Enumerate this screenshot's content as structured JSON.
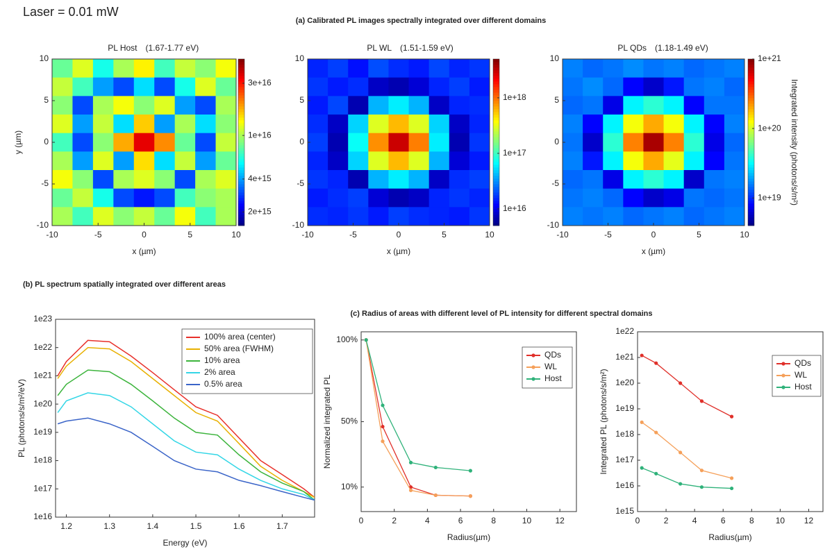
{
  "header": {
    "laser": "Laser = 0.01 mW",
    "panel_a": "(a) Calibrated PL images spectrally integrated over different domains",
    "panel_b": "(b) PL spectrum spatially integrated over different areas",
    "panel_c": "(c) Radius of areas with different level of PL intensity for different spectral domains"
  },
  "chart_data": [
    {
      "type": "heatmap",
      "title": "PL Host",
      "subtitle": "(1.67-1.77 eV)",
      "xlabel": "x (µm)",
      "ylabel": "y (µm)",
      "xlim": [
        -10,
        10
      ],
      "ylim": [
        -10,
        10
      ],
      "xticks": [
        -10,
        -5,
        0,
        5,
        10
      ],
      "yticks": [
        -10,
        -5,
        0,
        5,
        10
      ],
      "colormap": "jet",
      "zscale": "log",
      "zlim": [
        1500000000000000.0,
        5e+16
      ],
      "zticks": [
        {
          "value": 2000000000000000.0,
          "label": "2e+15"
        },
        {
          "value": 4000000000000000.0,
          "label": "4e+15"
        },
        {
          "value": 1e+16,
          "label": "1e+16"
        },
        {
          "value": 3e+16,
          "label": "3e+16"
        }
      ],
      "z": [
        [
          8000000000000000.0,
          1.2e+16,
          6000000000000000.0,
          1e+16,
          1.4e+16,
          7000000000000000.0,
          1.1e+16,
          9000000000000000.0,
          1.3e+16
        ],
        [
          1.1e+16,
          7000000000000000.0,
          4000000000000000.0,
          3000000000000000.0,
          5000000000000000.0,
          3000000000000000.0,
          6000000000000000.0,
          1.2e+16,
          8000000000000000.0
        ],
        [
          9000000000000000.0,
          3000000000000000.0,
          1e+16,
          1.3e+16,
          9000000000000000.0,
          1.2e+16,
          4000000000000000.0,
          3000000000000000.0,
          1e+16
        ],
        [
          1.2e+16,
          4000000000000000.0,
          1.1e+16,
          5000000000000000.0,
          1.6e+16,
          4000000000000000.0,
          1e+16,
          5000000000000000.0,
          9000000000000000.0
        ],
        [
          7000000000000000.0,
          3000000000000000.0,
          9000000000000000.0,
          1.8e+16,
          3.5e+16,
          2e+16,
          8000000000000000.0,
          3000000000000000.0,
          1.1e+16
        ],
        [
          1e+16,
          4000000000000000.0,
          1.2e+16,
          4000000000000000.0,
          1.5e+16,
          5000000000000000.0,
          1.1e+16,
          4000000000000000.0,
          8000000000000000.0
        ],
        [
          1.3e+16,
          9000000000000000.0,
          3000000000000000.0,
          1e+16,
          1.2e+16,
          9000000000000000.0,
          3000000000000000.0,
          1e+16,
          1.2e+16
        ],
        [
          8000000000000000.0,
          1.1e+16,
          6000000000000000.0,
          3000000000000000.0,
          2500000000000000.0,
          3000000000000000.0,
          7000000000000000.0,
          9000000000000000.0,
          1e+16
        ],
        [
          1e+16,
          7000000000000000.0,
          1.2e+16,
          9000000000000000.0,
          1.1e+16,
          8000000000000000.0,
          1.3e+16,
          7000000000000000.0,
          1e+16
        ]
      ]
    },
    {
      "type": "heatmap",
      "title": "PL WL",
      "subtitle": "(1.51-1.59 eV)",
      "xlabel": "x (µm)",
      "xlim": [
        -10,
        10
      ],
      "ylim": [
        -10,
        10
      ],
      "xticks": [
        -10,
        -5,
        0,
        5,
        10
      ],
      "yticks": [
        -10,
        -5,
        0,
        5,
        10
      ],
      "colormap": "jet",
      "zscale": "log",
      "zlim": [
        5000000000000000.0,
        5e+18
      ],
      "zticks": [
        {
          "value": 1e+16,
          "label": "1e+16"
        },
        {
          "value": 1e+17,
          "label": "1e+17"
        },
        {
          "value": 1e+18,
          "label": "1e+18"
        }
      ],
      "z": [
        [
          1.5e+16,
          1.8e+16,
          1.3e+16,
          2e+16,
          1.6e+16,
          1.4e+16,
          1.9e+16,
          1.5e+16,
          1.7e+16
        ],
        [
          1.7e+16,
          1.4e+16,
          1.6e+16,
          8000000000000000.0,
          7000000000000000.0,
          9000000000000000.0,
          1.5e+16,
          1.8e+16,
          1.4e+16
        ],
        [
          1.4e+16,
          1.9e+16,
          7000000000000000.0,
          4e+16,
          6e+16,
          4e+16,
          8000000000000000.0,
          1.5e+16,
          1.6e+16
        ],
        [
          1.6e+16,
          8000000000000000.0,
          5e+16,
          3e+17,
          6e+17,
          3e+17,
          5e+16,
          8000000000000000.0,
          1.5e+16
        ],
        [
          1.8e+16,
          7000000000000000.0,
          7e+16,
          8e+17,
          3e+18,
          9e+17,
          6e+16,
          7000000000000000.0,
          1.7e+16
        ],
        [
          1.5e+16,
          8000000000000000.0,
          5e+16,
          3e+17,
          6e+17,
          3e+17,
          4e+16,
          9000000000000000.0,
          1.4e+16
        ],
        [
          1.7e+16,
          1.5e+16,
          7000000000000000.0,
          4e+16,
          6e+16,
          4e+16,
          8000000000000000.0,
          1.6e+16,
          1.8e+16
        ],
        [
          1.4e+16,
          1.6e+16,
          1.8e+16,
          9000000000000000.0,
          7000000000000000.0,
          8000000000000000.0,
          1.5e+16,
          1.7e+16,
          1.5e+16
        ],
        [
          1.6e+16,
          1.5e+16,
          1.7e+16,
          1.4e+16,
          1.8e+16,
          1.6e+16,
          1.5e+16,
          1.4e+16,
          1.7e+16
        ]
      ]
    },
    {
      "type": "heatmap",
      "title": "PL QDs",
      "subtitle": "(1.18-1.49 eV)",
      "xlabel": "x (µm)",
      "zlabel": "Integrated intensity (photons/s/m²)",
      "xlim": [
        -10,
        10
      ],
      "ylim": [
        -10,
        10
      ],
      "xticks": [
        -10,
        -5,
        0,
        5,
        10
      ],
      "yticks": [
        -10,
        -5,
        0,
        5,
        10
      ],
      "colormap": "jet",
      "zscale": "log",
      "zlim": [
        4e+18,
        1e+21
      ],
      "zticks": [
        {
          "value": 1e+19,
          "label": "1e+19"
        },
        {
          "value": 1e+20,
          "label": "1e+20"
        },
        {
          "value": 1e+21,
          "label": "1e+21"
        }
      ],
      "z": [
        [
          1.6e+19,
          1.4e+19,
          1.5e+19,
          1.7e+19,
          1.5e+19,
          1.6e+19,
          1.4e+19,
          1.5e+19,
          1.6e+19
        ],
        [
          1.5e+19,
          1.7e+19,
          1.4e+19,
          8e+18,
          6e+18,
          9e+18,
          1.5e+19,
          1.6e+19,
          1.4e+19
        ],
        [
          1.4e+19,
          1.5e+19,
          7e+18,
          3e+19,
          4e+19,
          3e+19,
          8e+18,
          1.5e+19,
          1.5e+19
        ],
        [
          1.6e+19,
          8e+18,
          3e+19,
          1.2e+20,
          2e+20,
          1.2e+20,
          3e+19,
          8e+18,
          1.6e+19
        ],
        [
          1.5e+19,
          6e+18,
          4e+19,
          2.5e+20,
          8e+20,
          2.5e+20,
          4e+19,
          7e+18,
          1.4e+19
        ],
        [
          1.6e+19,
          9e+18,
          3e+19,
          1.2e+20,
          2e+20,
          1.1e+20,
          3e+19,
          8e+18,
          1.5e+19
        ],
        [
          1.4e+19,
          1.5e+19,
          7e+18,
          3e+19,
          4e+19,
          3e+19,
          6e+18,
          1.5e+19,
          1.6e+19
        ],
        [
          1.5e+19,
          1.6e+19,
          1.4e+19,
          8e+18,
          6e+18,
          7e+18,
          1.5e+19,
          1.4e+19,
          1.5e+19
        ],
        [
          1.6e+19,
          1.5e+19,
          1.6e+19,
          1.4e+19,
          1.5e+19,
          1.6e+19,
          1.4e+19,
          1.5e+19,
          1.6e+19
        ]
      ]
    },
    {
      "type": "line",
      "xlabel": "Energy (eV)",
      "ylabel": "PL (photons/s/m²/eV)",
      "yscale": "log",
      "legend": "upper right",
      "xlim": [
        1.175,
        1.775
      ],
      "xticks": [
        1.2,
        1.3,
        1.4,
        1.5,
        1.6,
        1.7
      ],
      "ylim": [
        1e+16,
        1e+23
      ],
      "yticks": [
        {
          "value": 1e+16,
          "label": "1e16"
        },
        {
          "value": 1e+17,
          "label": "1e17"
        },
        {
          "value": 1e+18,
          "label": "1e18"
        },
        {
          "value": 1e+19,
          "label": "1e19"
        },
        {
          "value": 1e+20,
          "label": "1e20"
        },
        {
          "value": 1e+21,
          "label": "1e21"
        },
        {
          "value": 1e+22,
          "label": "1e22"
        },
        {
          "value": 1e+23,
          "label": "1e23"
        }
      ],
      "x": [
        1.18,
        1.2,
        1.25,
        1.3,
        1.35,
        1.4,
        1.45,
        1.5,
        1.55,
        1.6,
        1.65,
        1.7,
        1.75,
        1.775
      ],
      "series": [
        {
          "name": "100% area (center)",
          "color": "#e8302a",
          "values": [
            1e+21,
            3.2e+21,
            1.8e+22,
            1.6e+22,
            5e+21,
            1.3e+21,
            3.2e+20,
            8e+19,
            4e+19,
            6.3e+18,
            1e+18,
            3.2e+17,
            1e+17,
            5e+16
          ]
        },
        {
          "name": "50% area (FWHM)",
          "color": "#e8b000",
          "values": [
            8e+20,
            2.2e+21,
            1e+22,
            9e+21,
            3.2e+21,
            8e+20,
            2e+20,
            5e+19,
            2.5e+19,
            4e+18,
            6.3e+17,
            2e+17,
            8e+16,
            5e+16
          ]
        },
        {
          "name": "10% area",
          "color": "#3cb43c",
          "values": [
            2e+20,
            5e+20,
            1.6e+21,
            1.4e+21,
            5e+20,
            1.3e+20,
            3.2e+19,
            1e+19,
            8e+18,
            1.6e+18,
            4e+17,
            1.6e+17,
            8e+16,
            4e+16
          ]
        },
        {
          "name": "2% area",
          "color": "#33d6e6",
          "values": [
            5e+19,
            1.3e+20,
            2.5e+20,
            2e+20,
            8e+19,
            2e+19,
            5e+18,
            2e+18,
            1.6e+18,
            5e+17,
            2e+17,
            1e+17,
            6.3e+16,
            4e+16
          ]
        },
        {
          "name": "0.5% area",
          "color": "#3a64c8",
          "values": [
            2e+19,
            2.5e+19,
            3.2e+19,
            2e+19,
            1e+19,
            3.2e+18,
            1e+18,
            5e+17,
            4e+17,
            2e+17,
            1.3e+17,
            8e+16,
            5e+16,
            4e+16
          ]
        }
      ]
    },
    {
      "type": "line",
      "markers": true,
      "xlabel": "Radius(µm)",
      "ylabel": "Normalized integrated PL",
      "legend": "upper right",
      "xlim": [
        0,
        13
      ],
      "xticks": [
        0,
        2,
        4,
        6,
        8,
        10,
        12
      ],
      "ylim": [
        -5,
        105
      ],
      "yticks": [
        {
          "value": 10,
          "label": "10%"
        },
        {
          "value": 50,
          "label": "50%"
        },
        {
          "value": 100,
          "label": "100%"
        }
      ],
      "x": [
        0.3,
        1.3,
        3,
        4.5,
        6.6
      ],
      "series": [
        {
          "name": "QDs",
          "color": "#e0302a",
          "values": [
            100,
            47,
            10,
            5,
            4.5
          ]
        },
        {
          "name": "WL",
          "color": "#f5a05a",
          "values": [
            100,
            38,
            8,
            5,
            4.5
          ]
        },
        {
          "name": "Host",
          "color": "#2fb27a",
          "values": [
            100,
            60,
            25,
            22,
            20
          ]
        }
      ]
    },
    {
      "type": "line",
      "markers": true,
      "xlabel": "Radius(µm)",
      "ylabel": "Integrated PL (photons/s/m²)",
      "yscale": "log",
      "legend": "upper right",
      "xlim": [
        0,
        13
      ],
      "xticks": [
        0,
        2,
        4,
        6,
        8,
        10,
        12
      ],
      "ylim": [
        1000000000000000.0,
        1e+22
      ],
      "yticks": [
        {
          "value": 1000000000000000.0,
          "label": "1e15"
        },
        {
          "value": 1e+16,
          "label": "1e16"
        },
        {
          "value": 1e+17,
          "label": "1e17"
        },
        {
          "value": 1e+18,
          "label": "1e18"
        },
        {
          "value": 1e+19,
          "label": "1e19"
        },
        {
          "value": 1e+20,
          "label": "1e20"
        },
        {
          "value": 1e+21,
          "label": "1e21"
        },
        {
          "value": 1e+22,
          "label": "1e22"
        }
      ],
      "x": [
        0.3,
        1.3,
        3,
        4.5,
        6.6
      ],
      "series": [
        {
          "name": "QDs",
          "color": "#e0302a",
          "values": [
            1.2e+21,
            6e+20,
            1e+20,
            2e+19,
            5e+18
          ]
        },
        {
          "name": "WL",
          "color": "#f5a05a",
          "values": [
            3e+18,
            1.2e+18,
            2e+17,
            4e+16,
            2e+16
          ]
        },
        {
          "name": "Host",
          "color": "#2fb27a",
          "values": [
            5e+16,
            3e+16,
            1.2e+16,
            9000000000000000.0,
            8000000000000000.0
          ]
        }
      ]
    }
  ]
}
